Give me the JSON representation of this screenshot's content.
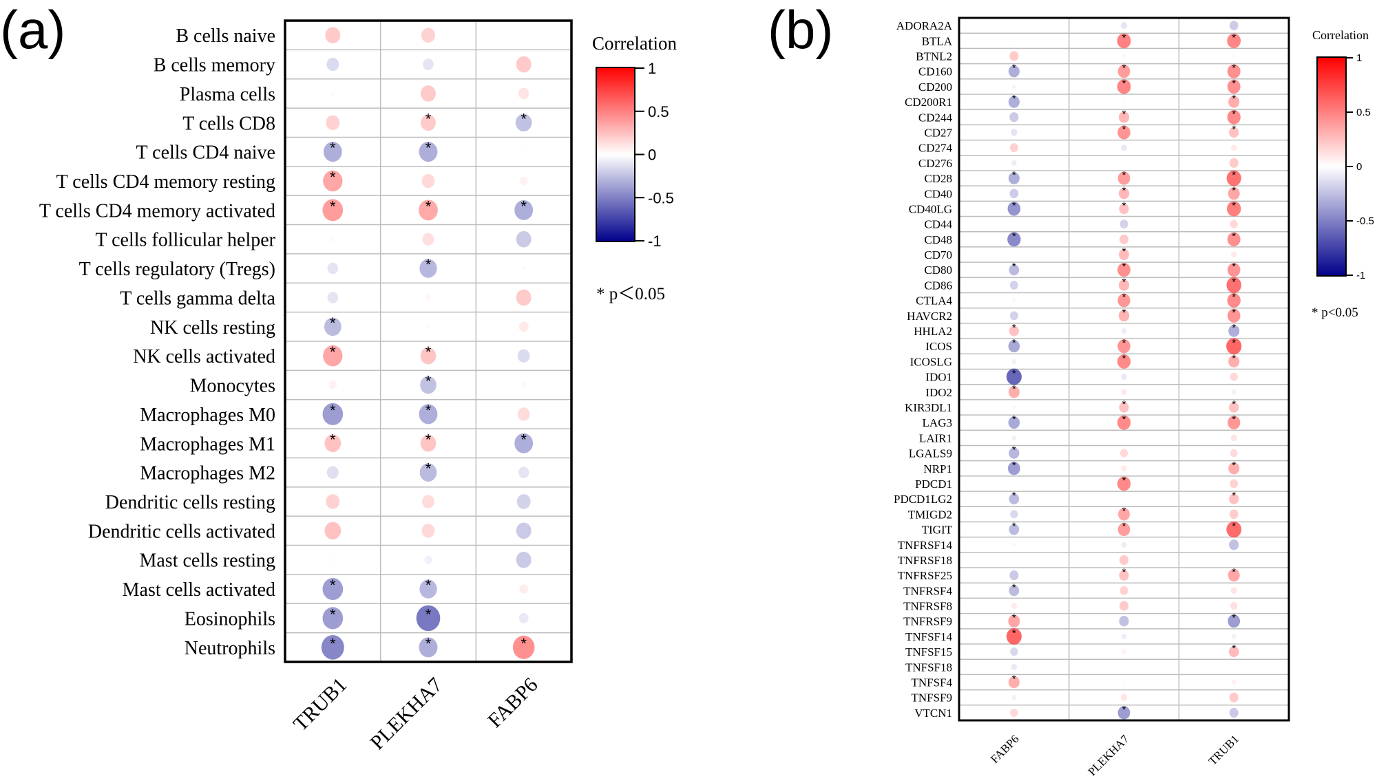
{
  "chart_data": [
    {
      "type": "heatmap",
      "panel_label": "(a)",
      "title": "",
      "xlabel": "",
      "ylabel": "",
      "columns": [
        "TRUB1",
        "PLEKHA7",
        "FABP6"
      ],
      "rows": [
        "B cells naive",
        "B cells memory",
        "Plasma cells",
        "T cells CD8",
        "T cells CD4 naive",
        "T cells CD4 memory resting",
        "T cells CD4 memory activated",
        "T cells follicular helper",
        "T cells regulatory (Tregs)",
        "T cells gamma delta",
        "NK cells resting",
        "NK cells activated",
        "Monocytes",
        "Macrophages M0",
        "Macrophages M1",
        "Macrophages M2",
        "Dendritic cells resting",
        "Dendritic cells activated",
        "Mast cells resting",
        "Mast cells activated",
        "Eosinophils",
        "Neutrophils"
      ],
      "values": [
        [
          0.3,
          0.25,
          0.0
        ],
        [
          -0.2,
          -0.15,
          0.3
        ],
        [
          0.03,
          0.3,
          0.15
        ],
        [
          0.25,
          0.3,
          -0.35
        ],
        [
          -0.45,
          -0.45,
          0.02
        ],
        [
          0.5,
          0.22,
          0.08
        ],
        [
          0.55,
          0.48,
          -0.45
        ],
        [
          0.03,
          0.18,
          -0.3
        ],
        [
          -0.15,
          -0.4,
          0.03
        ],
        [
          -0.15,
          0.05,
          0.3
        ],
        [
          -0.38,
          0.02,
          0.12
        ],
        [
          0.5,
          0.32,
          -0.2
        ],
        [
          0.08,
          -0.35,
          0.04
        ],
        [
          -0.55,
          -0.45,
          0.2
        ],
        [
          0.35,
          0.32,
          -0.45
        ],
        [
          -0.18,
          -0.38,
          -0.15
        ],
        [
          0.25,
          0.2,
          -0.25
        ],
        [
          0.35,
          0.22,
          -0.3
        ],
        [
          0.02,
          -0.08,
          -0.3
        ],
        [
          -0.55,
          -0.4,
          0.1
        ],
        [
          -0.55,
          -0.75,
          -0.12
        ],
        [
          -0.68,
          -0.45,
          0.62
        ]
      ],
      "significant": [
        [
          false,
          false,
          false
        ],
        [
          false,
          false,
          false
        ],
        [
          false,
          false,
          false
        ],
        [
          false,
          true,
          true
        ],
        [
          true,
          true,
          false
        ],
        [
          true,
          false,
          false
        ],
        [
          true,
          true,
          true
        ],
        [
          false,
          false,
          false
        ],
        [
          false,
          true,
          false
        ],
        [
          false,
          false,
          false
        ],
        [
          true,
          false,
          false
        ],
        [
          true,
          true,
          false
        ],
        [
          false,
          true,
          false
        ],
        [
          true,
          true,
          false
        ],
        [
          true,
          true,
          true
        ],
        [
          false,
          true,
          false
        ],
        [
          false,
          false,
          false
        ],
        [
          false,
          false,
          false
        ],
        [
          false,
          false,
          false
        ],
        [
          true,
          true,
          false
        ],
        [
          true,
          true,
          false
        ],
        [
          true,
          true,
          true
        ]
      ],
      "legend": {
        "title": "Correlation",
        "ticks": [
          "1",
          "0.5",
          "0",
          "-0.5",
          "-1"
        ],
        "range": [
          -1,
          1
        ],
        "colors": {
          "high": "#ff0000",
          "mid": "#ffffff",
          "low": "#00008b"
        },
        "placement": "right",
        "significance_note": "* p＜0.05"
      }
    },
    {
      "type": "heatmap",
      "panel_label": "(b)",
      "title": "",
      "xlabel": "",
      "ylabel": "",
      "columns": [
        "FABP6",
        "PLEKHA7",
        "TRUB1"
      ],
      "rows": [
        "ADORA2A",
        "BTLA",
        "BTNL2",
        "CD160",
        "CD200",
        "CD200R1",
        "CD244",
        "CD27",
        "CD274",
        "CD276",
        "CD28",
        "CD40",
        "CD40LG",
        "CD44",
        "CD48",
        "CD70",
        "CD80",
        "CD86",
        "CTLA4",
        "HAVCR2",
        "HHLA2",
        "ICOS",
        "ICOSLG",
        "IDO1",
        "IDO2",
        "KIR3DL1",
        "LAG3",
        "LAIR1",
        "LGALS9",
        "NRP1",
        "PDCD1",
        "PDCD1LG2",
        "TMIGD2",
        "TIGIT",
        "TNFRSF14",
        "TNFRSF18",
        "TNFRSF25",
        "TNFRSF4",
        "TNFRSF8",
        "TNFRSF9",
        "TNFSF14",
        "TNFSF15",
        "TNFSF18",
        "TNFSF4",
        "TNFSF9",
        "VTCN1"
      ],
      "values": [
        [
          0.0,
          -0.15,
          -0.28
        ],
        [
          0.02,
          0.7,
          0.68
        ],
        [
          0.3,
          0.05,
          0.04
        ],
        [
          -0.45,
          0.55,
          0.62
        ],
        [
          -0.06,
          0.68,
          0.62
        ],
        [
          -0.45,
          0.03,
          0.45
        ],
        [
          -0.3,
          0.4,
          0.65
        ],
        [
          -0.15,
          0.6,
          0.35
        ],
        [
          0.25,
          -0.12,
          0.12
        ],
        [
          -0.1,
          0.0,
          0.3
        ],
        [
          -0.45,
          0.55,
          0.78
        ],
        [
          -0.28,
          0.4,
          0.5
        ],
        [
          -0.6,
          0.35,
          0.72
        ],
        [
          0.0,
          -0.25,
          0.22
        ],
        [
          -0.65,
          0.3,
          0.62
        ],
        [
          0.0,
          0.38,
          0.12
        ],
        [
          -0.38,
          0.62,
          0.6
        ],
        [
          -0.25,
          0.4,
          0.8
        ],
        [
          -0.05,
          0.58,
          0.65
        ],
        [
          -0.25,
          0.42,
          0.6
        ],
        [
          0.35,
          -0.1,
          -0.45
        ],
        [
          -0.48,
          0.6,
          0.85
        ],
        [
          -0.08,
          0.65,
          0.45
        ],
        [
          -0.85,
          -0.12,
          0.22
        ],
        [
          0.45,
          0.12,
          -0.08
        ],
        [
          0.05,
          0.35,
          0.35
        ],
        [
          -0.48,
          0.65,
          0.58
        ],
        [
          -0.08,
          0.0,
          0.15
        ],
        [
          -0.4,
          0.22,
          0.2
        ],
        [
          -0.55,
          0.12,
          0.45
        ],
        [
          0.0,
          0.65,
          0.25
        ],
        [
          -0.38,
          0.0,
          0.35
        ],
        [
          -0.22,
          0.5,
          0.28
        ],
        [
          -0.38,
          0.55,
          0.82
        ],
        [
          0.05,
          -0.1,
          -0.35
        ],
        [
          0.0,
          0.3,
          0.02
        ],
        [
          -0.3,
          0.35,
          0.5
        ],
        [
          -0.38,
          0.25,
          0.15
        ],
        [
          0.12,
          0.3,
          0.18
        ],
        [
          0.5,
          -0.35,
          -0.55
        ],
        [
          0.85,
          -0.1,
          -0.08
        ],
        [
          -0.22,
          0.08,
          0.38
        ],
        [
          -0.12,
          0.0,
          0.0
        ],
        [
          0.45,
          0.03,
          0.08
        ],
        [
          -0.08,
          0.15,
          0.3
        ],
        [
          0.22,
          -0.55,
          -0.3
        ]
      ],
      "significant": [
        [
          false,
          false,
          false
        ],
        [
          false,
          true,
          true
        ],
        [
          false,
          false,
          false
        ],
        [
          true,
          true,
          true
        ],
        [
          false,
          true,
          true
        ],
        [
          true,
          false,
          true
        ],
        [
          false,
          true,
          true
        ],
        [
          false,
          true,
          true
        ],
        [
          false,
          false,
          false
        ],
        [
          false,
          false,
          false
        ],
        [
          true,
          true,
          true
        ],
        [
          false,
          true,
          true
        ],
        [
          true,
          true,
          true
        ],
        [
          false,
          false,
          false
        ],
        [
          true,
          false,
          true
        ],
        [
          false,
          true,
          false
        ],
        [
          true,
          true,
          true
        ],
        [
          false,
          true,
          true
        ],
        [
          false,
          true,
          true
        ],
        [
          false,
          true,
          true
        ],
        [
          true,
          false,
          true
        ],
        [
          true,
          true,
          true
        ],
        [
          false,
          true,
          true
        ],
        [
          true,
          false,
          false
        ],
        [
          true,
          false,
          false
        ],
        [
          false,
          true,
          true
        ],
        [
          true,
          true,
          true
        ],
        [
          false,
          false,
          false
        ],
        [
          true,
          false,
          false
        ],
        [
          true,
          false,
          true
        ],
        [
          false,
          true,
          false
        ],
        [
          true,
          false,
          true
        ],
        [
          false,
          true,
          false
        ],
        [
          true,
          true,
          true
        ],
        [
          false,
          false,
          false
        ],
        [
          false,
          false,
          false
        ],
        [
          false,
          true,
          true
        ],
        [
          true,
          false,
          false
        ],
        [
          false,
          false,
          false
        ],
        [
          true,
          false,
          true
        ],
        [
          true,
          false,
          false
        ],
        [
          false,
          false,
          true
        ],
        [
          false,
          false,
          false
        ],
        [
          true,
          false,
          false
        ],
        [
          false,
          false,
          false
        ],
        [
          false,
          true,
          false
        ]
      ],
      "legend": {
        "title": "Correlation",
        "ticks": [
          "1",
          "0.5",
          "0",
          "-0.5",
          "-1"
        ],
        "range": [
          -1,
          1
        ],
        "colors": {
          "high": "#ff0000",
          "mid": "#ffffff",
          "low": "#00008b"
        },
        "placement": "right",
        "significance_note": "* p<0.05"
      }
    }
  ]
}
